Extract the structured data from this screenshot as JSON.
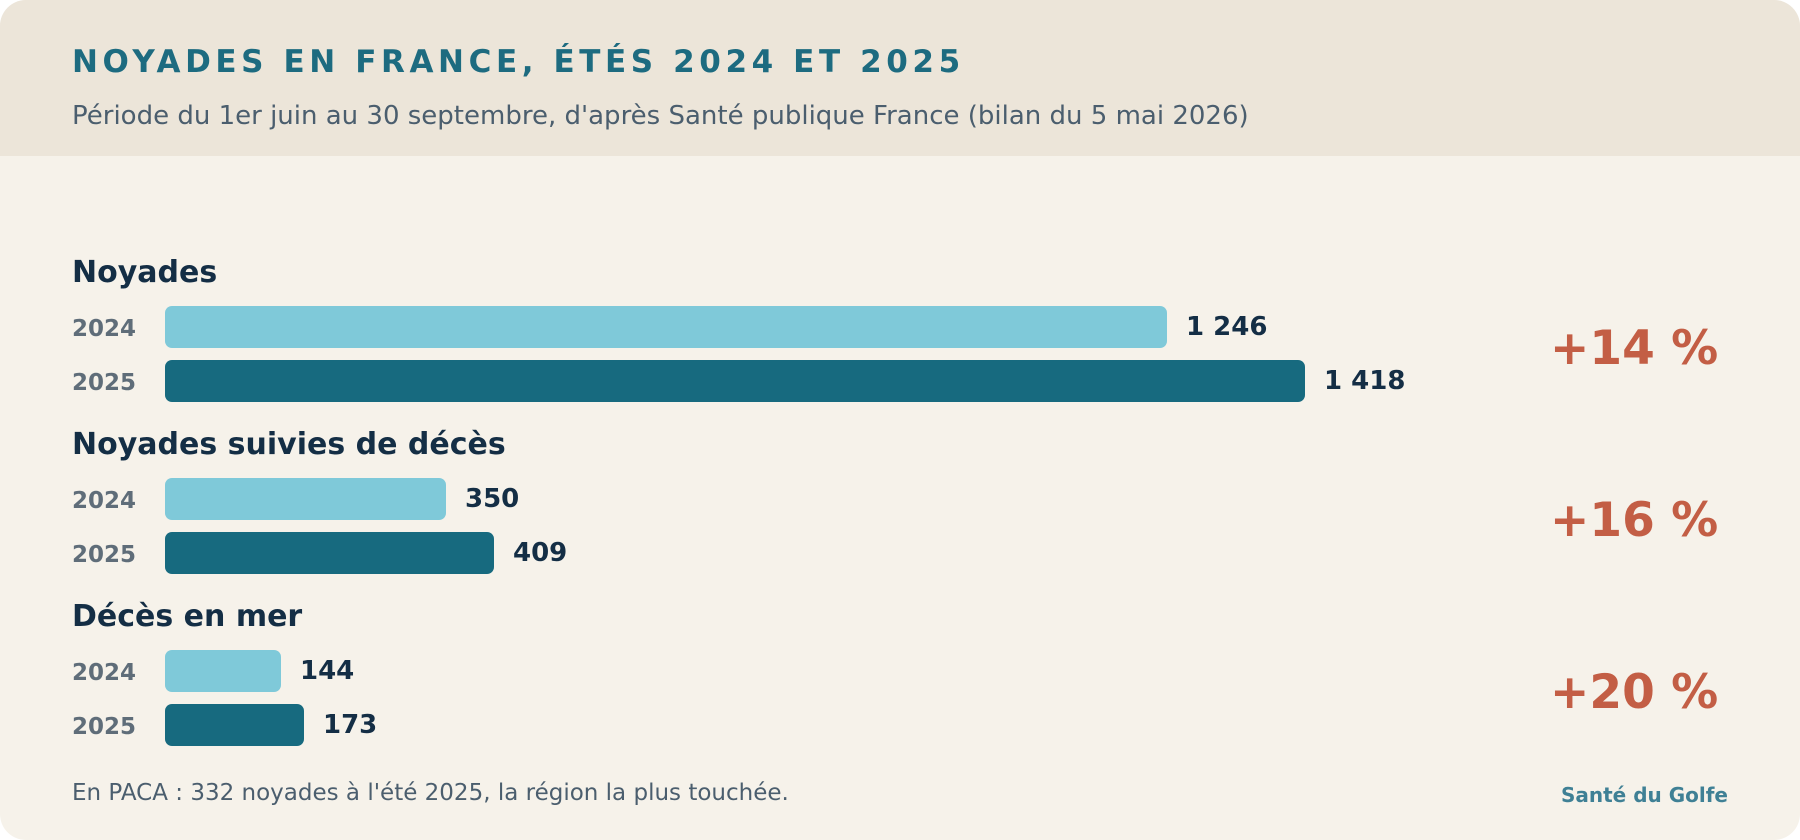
{
  "header": {
    "title": "NOYADES EN FRANCE, ÉTÉS 2024 ET 2025",
    "subtitle": "Période du 1er juin au 30 septembre, d'après Santé publique France (bilan du 5 mai 2026)"
  },
  "chart_data": {
    "type": "bar",
    "orientation": "horizontal",
    "series_names": [
      "2024",
      "2025"
    ],
    "colors": {
      "2024": "#7fc9d9",
      "2025": "#176a7f",
      "change": "#c35e45"
    },
    "groups": [
      {
        "title": "Noyades",
        "values": [
          1246,
          1418
        ],
        "labels": [
          "1 246",
          "1 418"
        ],
        "change": "+14 %"
      },
      {
        "title": "Noyades suivies de décès",
        "values": [
          350,
          409
        ],
        "labels": [
          "350",
          "409"
        ],
        "change": "+16 %"
      },
      {
        "title": "Décès en mer",
        "values": [
          144,
          173
        ],
        "labels": [
          "144",
          "173"
        ],
        "change": "+20 %"
      }
    ],
    "grid": false,
    "legend": "none"
  },
  "footer": {
    "note": "En PACA : 332 noyades à l'été 2025, la région la plus touchée.",
    "brand": "Santé du Golfe"
  }
}
